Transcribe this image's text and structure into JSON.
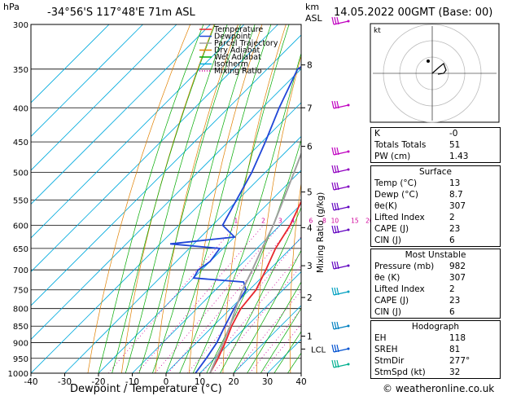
{
  "header": {
    "hpa_unit": "hPa",
    "location": "-34°56'S  117°48'E  71m  ASL",
    "km_label": "km",
    "asl_label": "ASL",
    "datetime": "14.05.2022  00GMT  (Base: 00)",
    "footer": "© weatheronline.co.uk"
  },
  "chart_data": {
    "type": "skew-t",
    "title": "",
    "xlabel": "Dewpoint / Temperature (°C)",
    "ylabel": "hPa",
    "mixing_ratio_label": "Mixing Ratio (g/kg)",
    "xlim": [
      -40,
      40
    ],
    "ylim": [
      1000,
      300
    ],
    "x_ticks": [
      -40,
      -30,
      -20,
      -10,
      0,
      10,
      20,
      30,
      40
    ],
    "pressure_levels": [
      300,
      350,
      400,
      450,
      500,
      550,
      600,
      650,
      700,
      750,
      800,
      850,
      900,
      950,
      1000
    ],
    "km_ticks": [
      {
        "label": "8",
        "p": 345
      },
      {
        "label": "7",
        "p": 400
      },
      {
        "label": "6",
        "p": 457
      },
      {
        "label": "5",
        "p": 535
      },
      {
        "label": "4",
        "p": 605
      },
      {
        "label": "3",
        "p": 690
      },
      {
        "label": "2",
        "p": 770
      },
      {
        "label": "1",
        "p": 880
      }
    ],
    "lcl_label": "LCL",
    "lcl_p": 920,
    "mixing_ratio_values": [
      "1",
      "2",
      "3",
      "4",
      "6",
      "8",
      "10",
      "15",
      "20",
      "25"
    ],
    "legend": [
      {
        "label": "Temperature",
        "color": "#e8282d"
      },
      {
        "label": "Dewpoint",
        "color": "#2046d8"
      },
      {
        "label": "Parcel Trajectory",
        "color": "#a0a0a0"
      },
      {
        "label": "Dry Adiabat",
        "color": "#e08000"
      },
      {
        "label": "Wet Adiabat",
        "color": "#00aa00"
      },
      {
        "label": "Isotherm",
        "color": "#00aadd"
      },
      {
        "label": "Mixing Ratio",
        "color": "#d0009a"
      }
    ],
    "series": [
      {
        "name": "Temperature",
        "points": [
          [
            1000,
            13
          ],
          [
            950,
            11
          ],
          [
            900,
            8.5
          ],
          [
            850,
            5.5
          ],
          [
            800,
            3
          ],
          [
            750,
            2
          ],
          [
            700,
            -1
          ],
          [
            650,
            -4.5
          ],
          [
            600,
            -7
          ],
          [
            550,
            -11
          ],
          [
            500,
            -16
          ],
          [
            450,
            -21
          ],
          [
            400,
            -27
          ],
          [
            350,
            -34
          ],
          [
            300,
            -41
          ]
        ]
      },
      {
        "name": "Dewpoint",
        "points": [
          [
            1000,
            8.7
          ],
          [
            950,
            7.5
          ],
          [
            900,
            6
          ],
          [
            850,
            3.5
          ],
          [
            800,
            1
          ],
          [
            750,
            -1
          ],
          [
            730,
            -4
          ],
          [
            720,
            -20
          ],
          [
            700,
            -21
          ],
          [
            680,
            -20
          ],
          [
            650,
            -21
          ],
          [
            640,
            -37
          ],
          [
            625,
            -20
          ],
          [
            600,
            -27
          ],
          [
            570,
            -29
          ],
          [
            500,
            -34
          ],
          [
            450,
            -39
          ],
          [
            400,
            -45
          ],
          [
            350,
            -51
          ],
          [
            330,
            -48
          ],
          [
            300,
            -44
          ]
        ]
      },
      {
        "name": "Parcel Trajectory",
        "points": [
          [
            1000,
            13
          ],
          [
            950,
            10.5
          ],
          [
            920,
            9
          ],
          [
            850,
            5
          ],
          [
            800,
            1.5
          ],
          [
            750,
            -2
          ],
          [
            700,
            -5
          ],
          [
            650,
            -8.5
          ],
          [
            600,
            -12
          ],
          [
            550,
            -16.5
          ],
          [
            500,
            -21.5
          ],
          [
            450,
            -27
          ],
          [
            400,
            -33.5
          ],
          [
            350,
            -41
          ],
          [
            300,
            -49
          ]
        ]
      }
    ]
  },
  "hodograph": {
    "unit_label": "kt"
  },
  "indices": [
    {
      "label": "K",
      "value": "-0"
    },
    {
      "label": "Totals Totals",
      "value": "51"
    },
    {
      "label": "PW (cm)",
      "value": "1.43"
    }
  ],
  "surface": {
    "title": "Surface",
    "rows": [
      {
        "label": "Temp (°C)",
        "value": "13"
      },
      {
        "label": "Dewp (°C)",
        "value": "8.7"
      },
      {
        "label": "θe(K)",
        "value": "307"
      },
      {
        "label": "Lifted Index",
        "value": "2"
      },
      {
        "label": "CAPE (J)",
        "value": "23"
      },
      {
        "label": "CIN (J)",
        "value": "6"
      }
    ]
  },
  "most_unstable": {
    "title": "Most Unstable",
    "rows": [
      {
        "label": "Pressure (mb)",
        "value": "982"
      },
      {
        "label": "θe (K)",
        "value": "307"
      },
      {
        "label": "Lifted Index",
        "value": "2"
      },
      {
        "label": "CAPE (J)",
        "value": "23"
      },
      {
        "label": "CIN (J)",
        "value": "6"
      }
    ]
  },
  "hodograph_table": {
    "title": "Hodograph",
    "rows": [
      {
        "label": "EH",
        "value": "118"
      },
      {
        "label": "SREH",
        "value": "81"
      },
      {
        "label": "StmDir",
        "value": "277°"
      },
      {
        "label": "StmSpd (kt)",
        "value": "32"
      }
    ]
  }
}
